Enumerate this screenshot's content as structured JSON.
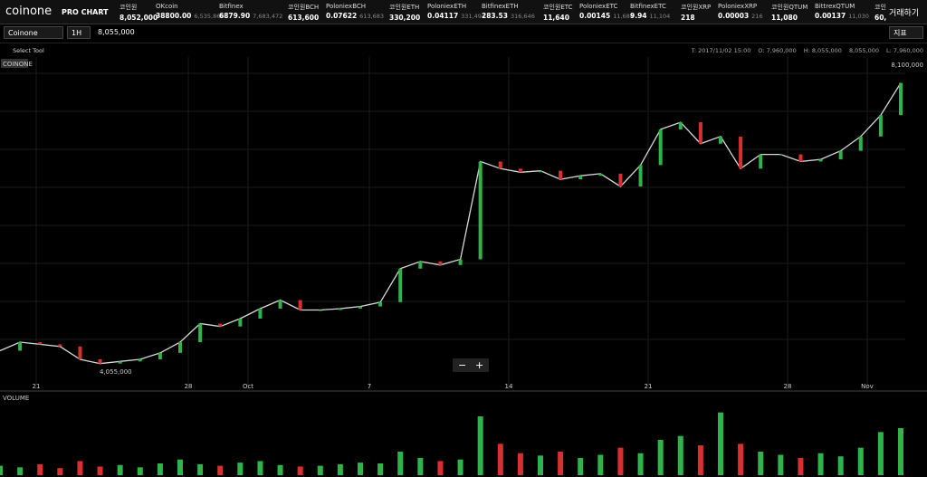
{
  "header": {
    "logo": "coinone",
    "product": "PRO CHART",
    "tickers": [
      {
        "name": "코인원",
        "price": "8,052,000"
      },
      {
        "name": "OKcoin",
        "price": "38800.00",
        "sub": "6,535,860"
      },
      {
        "name": "Bitfinex",
        "price": "6879.90",
        "sub": "7,683,472"
      },
      {
        "name": "코인원BCH",
        "price": "613,600"
      },
      {
        "name": "PoloniexBCH",
        "price": "0.07622",
        "sub": "613,683"
      },
      {
        "name": "코인원ETH",
        "price": "330,200"
      },
      {
        "name": "PoloniexETH",
        "price": "0.04117",
        "sub": "331,494"
      },
      {
        "name": "BitfinexETH",
        "price": "283.53",
        "sub": "316,646"
      },
      {
        "name": "코인원ETC",
        "price": "11,640"
      },
      {
        "name": "PoloniexETC",
        "price": "0.00145",
        "sub": "11,684"
      },
      {
        "name": "BitfinexETC",
        "price": "9.94",
        "sub": "11,104"
      },
      {
        "name": "코인원XRP",
        "price": "218"
      },
      {
        "name": "PoloniexXRP",
        "price": "0.00003",
        "sub": "216"
      },
      {
        "name": "코인원QTUM",
        "price": "11,080"
      },
      {
        "name": "BittrexQTUM",
        "price": "0.00137",
        "sub": "11,030"
      },
      {
        "name": "코인",
        "price": "60,"
      }
    ],
    "trade_button": "거래하기"
  },
  "toolbar": {
    "exchange": "Coinone",
    "interval": "1H",
    "last_price": "8,055,000",
    "indicator_button": "지표"
  },
  "toolrow": {
    "select_tool": "Select Tool",
    "info": [
      "T: 2017/11/02 15:00",
      "O: 7,960,000",
      "H: 8,055,000",
      "8,055,000",
      "L: 7,960,000"
    ]
  },
  "chart_data": {
    "type": "line",
    "legend": "COINONE",
    "high_label": "8,100,000",
    "low_label": "4,055,000",
    "x_labels": [
      "21",
      "28",
      "Oct",
      "7",
      "14",
      "21",
      "28",
      "Nov"
    ],
    "ylim": [
      3850000,
      8350000
    ],
    "color": "#d8d8d8",
    "values": [
      4300000,
      4420000,
      4390000,
      4360000,
      4180000,
      4120000,
      4150000,
      4180000,
      4270000,
      4420000,
      4680000,
      4640000,
      4750000,
      4890000,
      5010000,
      4870000,
      4870000,
      4890000,
      4920000,
      4980000,
      5450000,
      5550000,
      5500000,
      5580000,
      6950000,
      6850000,
      6800000,
      6820000,
      6700000,
      6750000,
      6780000,
      6600000,
      6900000,
      7400000,
      7500000,
      7200000,
      7300000,
      6850000,
      7050000,
      7050000,
      6950000,
      6980000,
      7100000,
      7300000,
      7600000,
      8050000
    ],
    "volume_label": "VOLUME",
    "volume": [
      12,
      10,
      14,
      9,
      18,
      11,
      13,
      10,
      15,
      20,
      14,
      12,
      16,
      18,
      13,
      11,
      12,
      14,
      16,
      15,
      30,
      22,
      18,
      20,
      75,
      40,
      28,
      25,
      30,
      22,
      26,
      35,
      28,
      45,
      50,
      38,
      80,
      40,
      30,
      26,
      22,
      28,
      24,
      35,
      55,
      60
    ],
    "volume_ylim": [
      0,
      90
    ]
  }
}
